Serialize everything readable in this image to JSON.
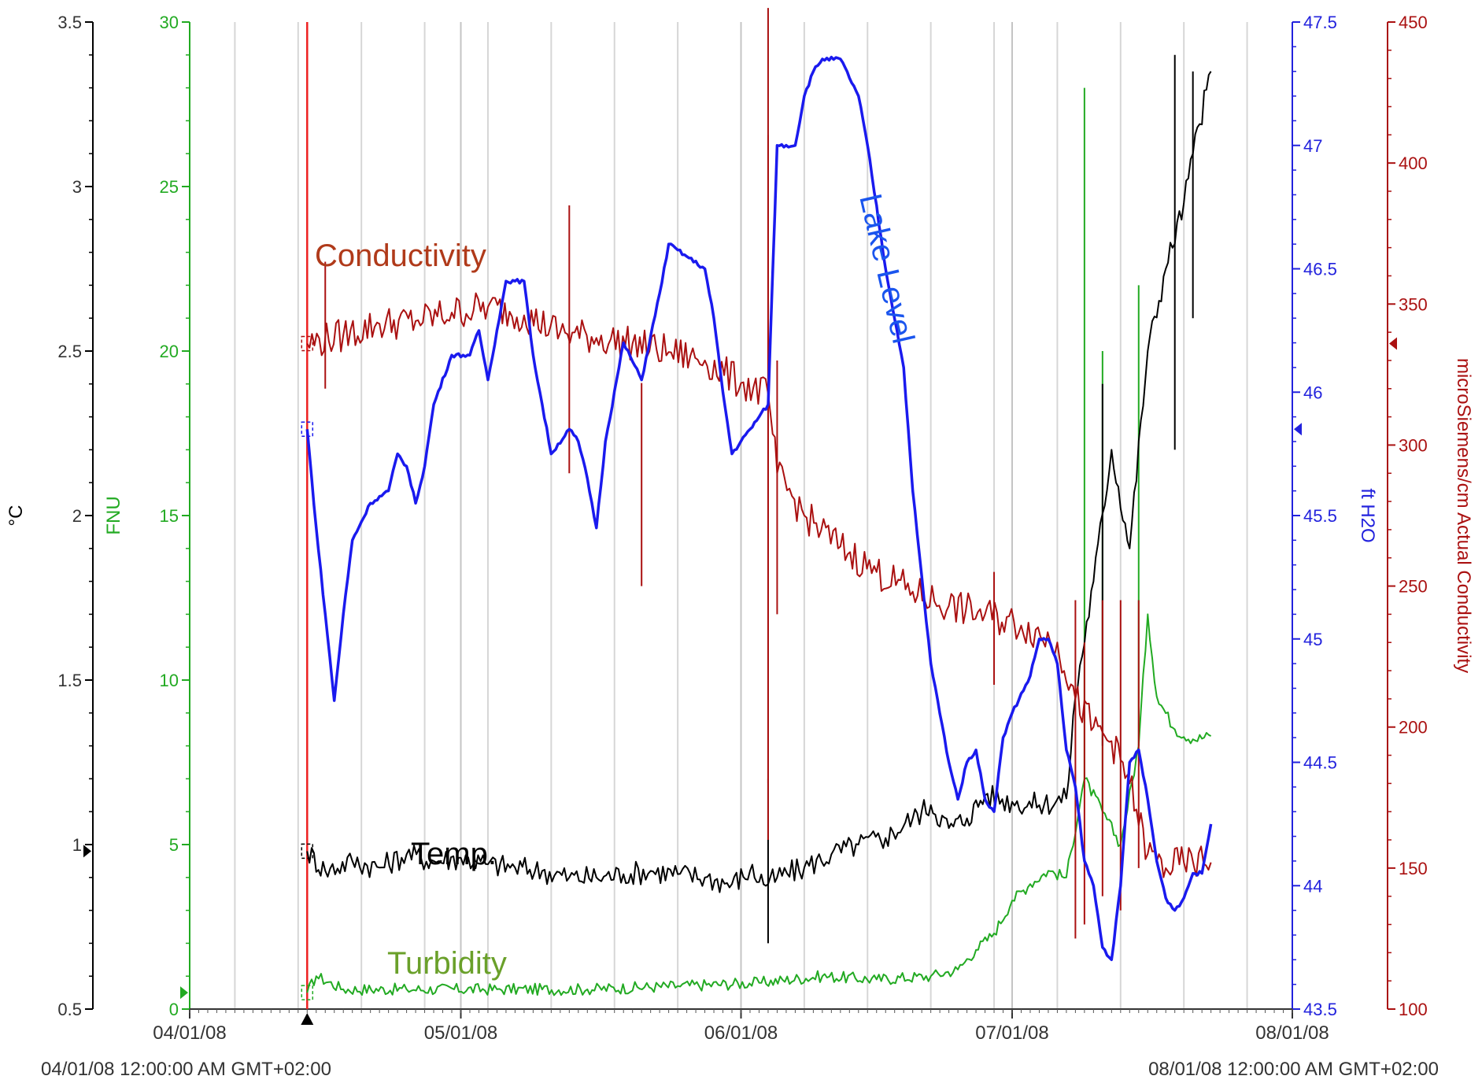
{
  "chart_data": {
    "type": "line",
    "grid": "vertical",
    "x": {
      "tick_labels": [
        "04/01/08",
        "05/01/08",
        "06/01/08",
        "07/01/08",
        "08/01/08"
      ],
      "range": [
        "2008-04-01",
        "2008-08-01"
      ],
      "start_label": "04/01/08 12:00:00 AM GMT+02:00",
      "end_label": "08/01/08 12:00:00 AM GMT+02:00"
    },
    "axes": {
      "temp": {
        "title": "°C",
        "color": "#000000",
        "range": [
          0.5,
          3.5
        ],
        "ticks": [
          "0.5",
          "1",
          "1.5",
          "2",
          "2.5",
          "3",
          "3.5"
        ]
      },
      "turbidity": {
        "title": "FNU",
        "color": "#22aa22",
        "range": [
          0,
          30
        ],
        "ticks": [
          "0",
          "5",
          "10",
          "15",
          "20",
          "25",
          "30"
        ]
      },
      "level": {
        "title": "ft H2O",
        "color": "#2222dd",
        "range": [
          43.5,
          47.5
        ],
        "ticks": [
          "43.5",
          "44",
          "44.5",
          "45",
          "45.5",
          "46",
          "46.5",
          "47",
          "47.5"
        ]
      },
      "conductivity": {
        "title": "microSiemens/cm Actual Conductivity",
        "color": "#aa1111",
        "range": [
          100,
          450
        ],
        "ticks": [
          "100",
          "150",
          "200",
          "250",
          "300",
          "350",
          "400",
          "450"
        ]
      }
    },
    "marker_date": "2008-04-14",
    "annotations": {
      "conductivity": "Conductivity",
      "lake_level": "Lake Level",
      "temp": "Temp.",
      "turbidity": "Turbidity"
    },
    "series": [
      {
        "name": "Lake Level",
        "axis": "level",
        "color": "#1a1aee",
        "points": [
          [
            "2008-04-14",
            45.85
          ],
          [
            "2008-04-15",
            45.45
          ],
          [
            "2008-04-16",
            45.1
          ],
          [
            "2008-04-17",
            44.75
          ],
          [
            "2008-04-18",
            45.1
          ],
          [
            "2008-04-19",
            45.4
          ],
          [
            "2008-04-21",
            45.55
          ],
          [
            "2008-04-23",
            45.6
          ],
          [
            "2008-04-24",
            45.75
          ],
          [
            "2008-04-25",
            45.7
          ],
          [
            "2008-04-26",
            45.55
          ],
          [
            "2008-04-27",
            45.7
          ],
          [
            "2008-04-28",
            45.95
          ],
          [
            "2008-04-30",
            46.15
          ],
          [
            "2008-05-02",
            46.15
          ],
          [
            "2008-05-03",
            46.25
          ],
          [
            "2008-05-04",
            46.05
          ],
          [
            "2008-05-05",
            46.25
          ],
          [
            "2008-05-06",
            46.45
          ],
          [
            "2008-05-07",
            46.45
          ],
          [
            "2008-05-08",
            46.45
          ],
          [
            "2008-05-09",
            46.15
          ],
          [
            "2008-05-11",
            45.75
          ],
          [
            "2008-05-13",
            45.85
          ],
          [
            "2008-05-14",
            45.8
          ],
          [
            "2008-05-15",
            45.65
          ],
          [
            "2008-05-16",
            45.45
          ],
          [
            "2008-05-17",
            45.8
          ],
          [
            "2008-05-19",
            46.2
          ],
          [
            "2008-05-21",
            46.05
          ],
          [
            "2008-05-23",
            46.4
          ],
          [
            "2008-05-24",
            46.6
          ],
          [
            "2008-05-26",
            46.55
          ],
          [
            "2008-05-28",
            46.5
          ],
          [
            "2008-05-29",
            46.3
          ],
          [
            "2008-05-30",
            46.0
          ],
          [
            "2008-05-31",
            45.75
          ],
          [
            "2008-06-02",
            45.85
          ],
          [
            "2008-06-03",
            45.9
          ],
          [
            "2008-06-04",
            45.95
          ],
          [
            "2008-06-05",
            47.0
          ],
          [
            "2008-06-07",
            47.0
          ],
          [
            "2008-06-08",
            47.2
          ],
          [
            "2008-06-09",
            47.3
          ],
          [
            "2008-06-10",
            47.35
          ],
          [
            "2008-06-12",
            47.35
          ],
          [
            "2008-06-14",
            47.2
          ],
          [
            "2008-06-15",
            47.0
          ],
          [
            "2008-06-17",
            46.5
          ],
          [
            "2008-06-19",
            46.1
          ],
          [
            "2008-06-20",
            45.6
          ],
          [
            "2008-06-22",
            44.9
          ],
          [
            "2008-06-24",
            44.5
          ],
          [
            "2008-06-25",
            44.35
          ],
          [
            "2008-06-26",
            44.5
          ],
          [
            "2008-06-27",
            44.55
          ],
          [
            "2008-06-28",
            44.35
          ],
          [
            "2008-06-29",
            44.3
          ],
          [
            "2008-06-30",
            44.6
          ],
          [
            "2008-07-01",
            44.7
          ],
          [
            "2008-07-03",
            44.85
          ],
          [
            "2008-07-04",
            45.0
          ],
          [
            "2008-07-05",
            45.0
          ],
          [
            "2008-07-06",
            44.9
          ],
          [
            "2008-07-07",
            44.55
          ],
          [
            "2008-07-08",
            44.4
          ],
          [
            "2008-07-09",
            44.1
          ],
          [
            "2008-07-10",
            44.0
          ],
          [
            "2008-07-11",
            43.75
          ],
          [
            "2008-07-12",
            43.7
          ],
          [
            "2008-07-13",
            44.0
          ],
          [
            "2008-07-14",
            44.5
          ],
          [
            "2008-07-15",
            44.55
          ],
          [
            "2008-07-16",
            44.35
          ],
          [
            "2008-07-17",
            44.1
          ],
          [
            "2008-07-18",
            43.95
          ],
          [
            "2008-07-19",
            43.9
          ],
          [
            "2008-07-20",
            43.95
          ],
          [
            "2008-07-21",
            44.05
          ],
          [
            "2008-07-22",
            44.05
          ],
          [
            "2008-07-23",
            44.25
          ]
        ]
      },
      {
        "name": "Conductivity",
        "axis": "conductivity",
        "color": "#aa1111",
        "points": [
          [
            "2008-04-14",
            336
          ],
          [
            "2008-04-18",
            339
          ],
          [
            "2008-04-22",
            343
          ],
          [
            "2008-04-26",
            344
          ],
          [
            "2008-04-30",
            347
          ],
          [
            "2008-05-04",
            349
          ],
          [
            "2008-05-08",
            346
          ],
          [
            "2008-05-12",
            340
          ],
          [
            "2008-05-16",
            338
          ],
          [
            "2008-05-20",
            336
          ],
          [
            "2008-05-24",
            333
          ],
          [
            "2008-05-28",
            330
          ],
          [
            "2008-06-01",
            322
          ],
          [
            "2008-06-04",
            318
          ],
          [
            "2008-06-05",
            290
          ],
          [
            "2008-06-08",
            275
          ],
          [
            "2008-06-12",
            264
          ],
          [
            "2008-06-16",
            255
          ],
          [
            "2008-06-20",
            248
          ],
          [
            "2008-06-24",
            243
          ],
          [
            "2008-06-28",
            240
          ],
          [
            "2008-07-02",
            236
          ],
          [
            "2008-07-06",
            230
          ],
          [
            "2008-07-08",
            210
          ],
          [
            "2008-07-10",
            200
          ],
          [
            "2008-07-12",
            195
          ],
          [
            "2008-07-14",
            180
          ],
          [
            "2008-07-16",
            155
          ],
          [
            "2008-07-18",
            150
          ],
          [
            "2008-07-20",
            152
          ],
          [
            "2008-07-23",
            152
          ]
        ],
        "spikes": [
          [
            "2008-05-13",
            385,
            290
          ],
          [
            "2008-04-21",
            300,
            300
          ],
          [
            "2008-04-16",
            365,
            320
          ],
          [
            "2008-05-21",
            322,
            250
          ],
          [
            "2008-06-04",
            455,
            180
          ],
          [
            "2008-06-04",
            410,
            160
          ],
          [
            "2008-06-05",
            330,
            240
          ],
          [
            "2008-06-29",
            255,
            215
          ],
          [
            "2008-07-08",
            245,
            125
          ],
          [
            "2008-07-09",
            230,
            130
          ],
          [
            "2008-07-11",
            245,
            140
          ],
          [
            "2008-07-13",
            245,
            135
          ],
          [
            "2008-07-15",
            245,
            150
          ]
        ]
      },
      {
        "name": "Temp.",
        "axis": "temp",
        "color": "#000000",
        "points": [
          [
            "2008-04-14",
            0.98
          ],
          [
            "2008-04-16",
            0.92
          ],
          [
            "2008-04-19",
            0.95
          ],
          [
            "2008-04-22",
            0.93
          ],
          [
            "2008-04-25",
            0.97
          ],
          [
            "2008-04-28",
            0.95
          ],
          [
            "2008-05-01",
            0.96
          ],
          [
            "2008-05-04",
            0.94
          ],
          [
            "2008-05-07",
            0.93
          ],
          [
            "2008-05-10",
            0.92
          ],
          [
            "2008-05-13",
            0.9
          ],
          [
            "2008-05-16",
            0.9
          ],
          [
            "2008-05-19",
            0.91
          ],
          [
            "2008-05-22",
            0.92
          ],
          [
            "2008-05-25",
            0.91
          ],
          [
            "2008-05-28",
            0.9
          ],
          [
            "2008-05-31",
            0.88
          ],
          [
            "2008-06-02",
            0.92
          ],
          [
            "2008-06-04",
            0.88
          ],
          [
            "2008-06-05",
            0.9
          ],
          [
            "2008-06-08",
            0.93
          ],
          [
            "2008-06-11",
            0.97
          ],
          [
            "2008-06-14",
            1.0
          ],
          [
            "2008-06-17",
            1.02
          ],
          [
            "2008-06-20",
            1.08
          ],
          [
            "2008-06-22",
            1.12
          ],
          [
            "2008-06-24",
            1.05
          ],
          [
            "2008-06-26",
            1.08
          ],
          [
            "2008-06-28",
            1.15
          ],
          [
            "2008-07-01",
            1.13
          ],
          [
            "2008-07-04",
            1.12
          ],
          [
            "2008-07-07",
            1.14
          ],
          [
            "2008-07-08",
            1.45
          ],
          [
            "2008-07-10",
            1.8
          ],
          [
            "2008-07-12",
            2.2
          ],
          [
            "2008-07-14",
            1.9
          ],
          [
            "2008-07-16",
            2.5
          ],
          [
            "2008-07-18",
            2.75
          ],
          [
            "2008-07-20",
            2.95
          ],
          [
            "2008-07-21",
            3.1
          ],
          [
            "2008-07-23",
            3.35
          ]
        ],
        "spikes": [
          [
            "2008-06-04",
            1.2,
            0.7
          ],
          [
            "2008-07-11",
            2.4,
            1.3
          ],
          [
            "2008-07-19",
            3.4,
            2.2
          ],
          [
            "2008-07-21",
            3.35,
            2.6
          ]
        ]
      },
      {
        "name": "Turbidity",
        "axis": "turbidity",
        "color": "#22aa22",
        "points": [
          [
            "2008-04-14",
            0.5
          ],
          [
            "2008-04-15",
            1.0
          ],
          [
            "2008-04-18",
            0.6
          ],
          [
            "2008-04-25",
            0.6
          ],
          [
            "2008-05-05",
            0.6
          ],
          [
            "2008-05-15",
            0.6
          ],
          [
            "2008-05-25",
            0.7
          ],
          [
            "2008-06-03",
            0.8
          ],
          [
            "2008-06-10",
            1.0
          ],
          [
            "2008-06-16",
            0.9
          ],
          [
            "2008-06-22",
            1.0
          ],
          [
            "2008-06-25",
            1.2
          ],
          [
            "2008-06-27",
            1.8
          ],
          [
            "2008-06-29",
            2.3
          ],
          [
            "2008-07-01",
            3.3
          ],
          [
            "2008-07-03",
            3.8
          ],
          [
            "2008-07-05",
            4.2
          ],
          [
            "2008-07-07",
            4.0
          ],
          [
            "2008-07-09",
            7.0
          ],
          [
            "2008-07-11",
            6.0
          ],
          [
            "2008-07-13",
            5.0
          ],
          [
            "2008-07-15",
            8.0
          ],
          [
            "2008-07-16",
            12.0
          ],
          [
            "2008-07-17",
            9.5
          ],
          [
            "2008-07-19",
            8.5
          ],
          [
            "2008-07-21",
            8.2
          ],
          [
            "2008-07-23",
            8.3
          ]
        ],
        "spikes": [
          [
            "2008-07-09",
            28.0,
            7.0
          ],
          [
            "2008-07-11",
            20.0,
            6.0
          ],
          [
            "2008-07-15",
            22.0,
            8.0
          ]
        ]
      }
    ]
  }
}
